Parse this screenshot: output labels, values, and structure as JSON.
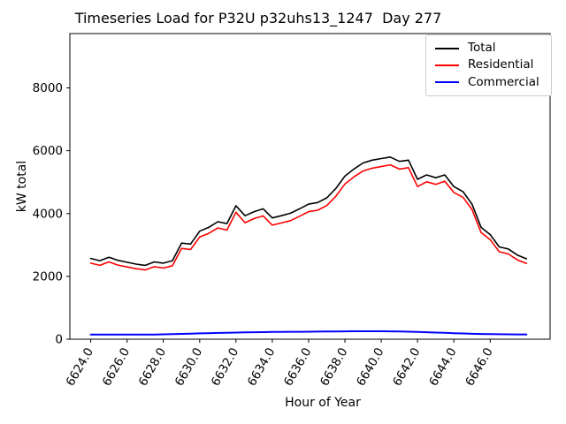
{
  "title": "Timeseries Load for P32U p32uhs13_1247  Day 277",
  "chart_data": {
    "type": "line",
    "title": "Timeseries Load for P32U p32uhs13_1247  Day 277",
    "xlabel": "Hour of Year",
    "ylabel": "kW total",
    "grid": false,
    "xlim": [
      6622.85,
      6649.3
    ],
    "ylim": [
      0,
      9730
    ],
    "xticks": {
      "values": [
        6624,
        6626,
        6628,
        6630,
        6632,
        6634,
        6636,
        6638,
        6640,
        6642,
        6644,
        6646
      ],
      "labels": [
        "6624.0",
        "6626.0",
        "6628.0",
        "6630.0",
        "6632.0",
        "6634.0",
        "6636.0",
        "6638.0",
        "6640.0",
        "6642.0",
        "6644.0",
        "6646.0"
      ],
      "rotation": 60
    },
    "yticks": {
      "values": [
        0,
        2000,
        4000,
        6000,
        8000
      ],
      "labels": [
        "0",
        "2000",
        "4000",
        "6000",
        "8000"
      ]
    },
    "legend": {
      "position": "upper right",
      "entries": [
        {
          "label": "Total",
          "color": "#000000"
        },
        {
          "label": "Residential",
          "color": "#ff0000"
        },
        {
          "label": "Commercial",
          "color": "#0000ff"
        }
      ]
    },
    "x": [
      6624.0,
      6624.5,
      6625.0,
      6625.5,
      6626.0,
      6626.5,
      6627.0,
      6627.5,
      6628.0,
      6628.5,
      6629.0,
      6629.5,
      6630.0,
      6630.5,
      6631.0,
      6631.5,
      6632.0,
      6632.5,
      6633.0,
      6633.5,
      6634.0,
      6634.5,
      6635.0,
      6635.5,
      6636.0,
      6636.5,
      6637.0,
      6637.5,
      6638.0,
      6638.5,
      6639.0,
      6639.5,
      6640.0,
      6640.5,
      6641.0,
      6641.5,
      6642.0,
      6642.5,
      6643.0,
      6643.5,
      6644.0,
      6644.5,
      6645.0,
      6645.5,
      6646.0,
      6646.5,
      6647.0,
      6647.5,
      6648.0
    ],
    "series": [
      {
        "name": "Total",
        "color": "#000000",
        "width": 1.6,
        "values": [
          2570,
          2500,
          2610,
          2510,
          2450,
          2390,
          2350,
          2460,
          2420,
          2500,
          3060,
          3030,
          3440,
          3560,
          3740,
          3680,
          4250,
          3930,
          4060,
          4150,
          3860,
          3930,
          4010,
          4150,
          4300,
          4350,
          4500,
          4800,
          5190,
          5420,
          5610,
          5700,
          5750,
          5800,
          5660,
          5700,
          5090,
          5230,
          5140,
          5230,
          4860,
          4700,
          4300,
          3560,
          3330,
          2940,
          2870,
          2680,
          2560
        ]
      },
      {
        "name": "Residential",
        "color": "#ff0000",
        "width": 1.6,
        "values": [
          2420,
          2350,
          2460,
          2360,
          2300,
          2245,
          2205,
          2310,
          2265,
          2340,
          2890,
          2855,
          3255,
          3370,
          3540,
          3475,
          4040,
          3710,
          3840,
          3925,
          3630,
          3700,
          3775,
          3915,
          4060,
          4105,
          4255,
          4550,
          4940,
          5170,
          5355,
          5445,
          5495,
          5550,
          5415,
          5460,
          4860,
          5010,
          4930,
          5030,
          4670,
          4520,
          4130,
          3395,
          3170,
          2785,
          2715,
          2525,
          2410
        ]
      },
      {
        "name": "Commercial",
        "color": "#0000ff",
        "width": 2,
        "values": [
          150,
          150,
          150,
          148,
          148,
          146,
          145,
          148,
          155,
          160,
          168,
          175,
          185,
          192,
          200,
          205,
          212,
          218,
          222,
          226,
          230,
          232,
          235,
          237,
          240,
          243,
          246,
          248,
          250,
          252,
          253,
          254,
          253,
          250,
          245,
          240,
          232,
          222,
          212,
          202,
          192,
          182,
          172,
          165,
          160,
          157,
          155,
          153,
          152
        ]
      }
    ]
  }
}
